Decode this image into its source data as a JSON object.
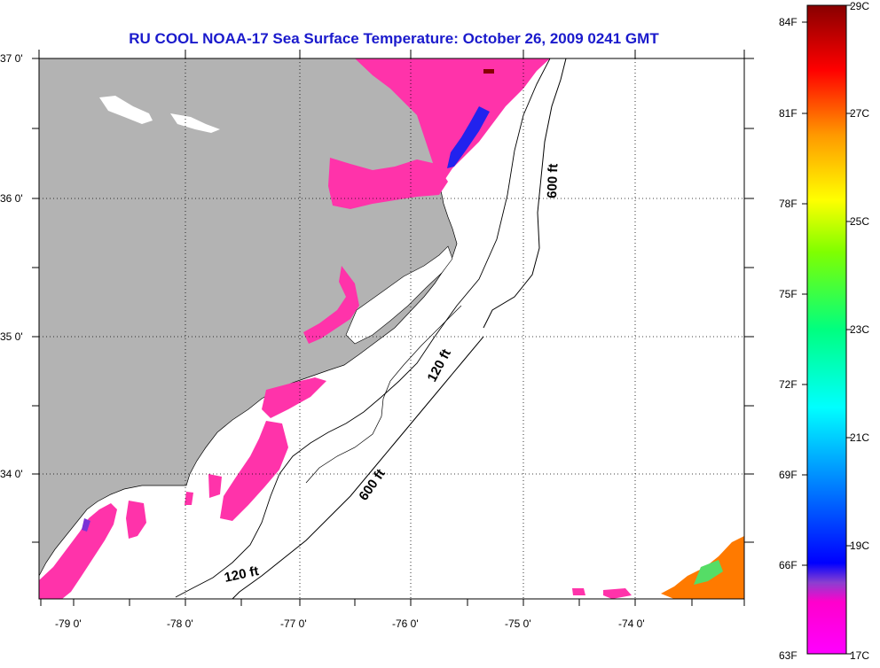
{
  "title": "RU COOL  NOAA-17  Sea Surface Temperature:  October 26, 2009 0241 GMT",
  "lat_labels": [
    "37 0'",
    "36 0'",
    "35 0'",
    "34 0'"
  ],
  "lon_labels": [
    "-79 0'",
    "-78 0'",
    "-77 0'",
    "-76 0'",
    "-75 0'",
    "-74 0'"
  ],
  "contour_labels": {
    "c600_north": "600 ft",
    "c120_mid": "120 ft",
    "c600_south": "600 ft",
    "c120_south": "120 ft"
  },
  "colorbar": {
    "fahrenheit": [
      "84F",
      "81F",
      "78F",
      "75F",
      "72F",
      "69F",
      "66F",
      "63F"
    ],
    "celsius": [
      "29C",
      "27C",
      "25C",
      "23C",
      "21C",
      "19C",
      "17C"
    ]
  },
  "colors": {
    "title": "#1a1acc",
    "land": "#b3b3b3",
    "water": "#ffffff",
    "cold_sst": "#ff33aa"
  }
}
